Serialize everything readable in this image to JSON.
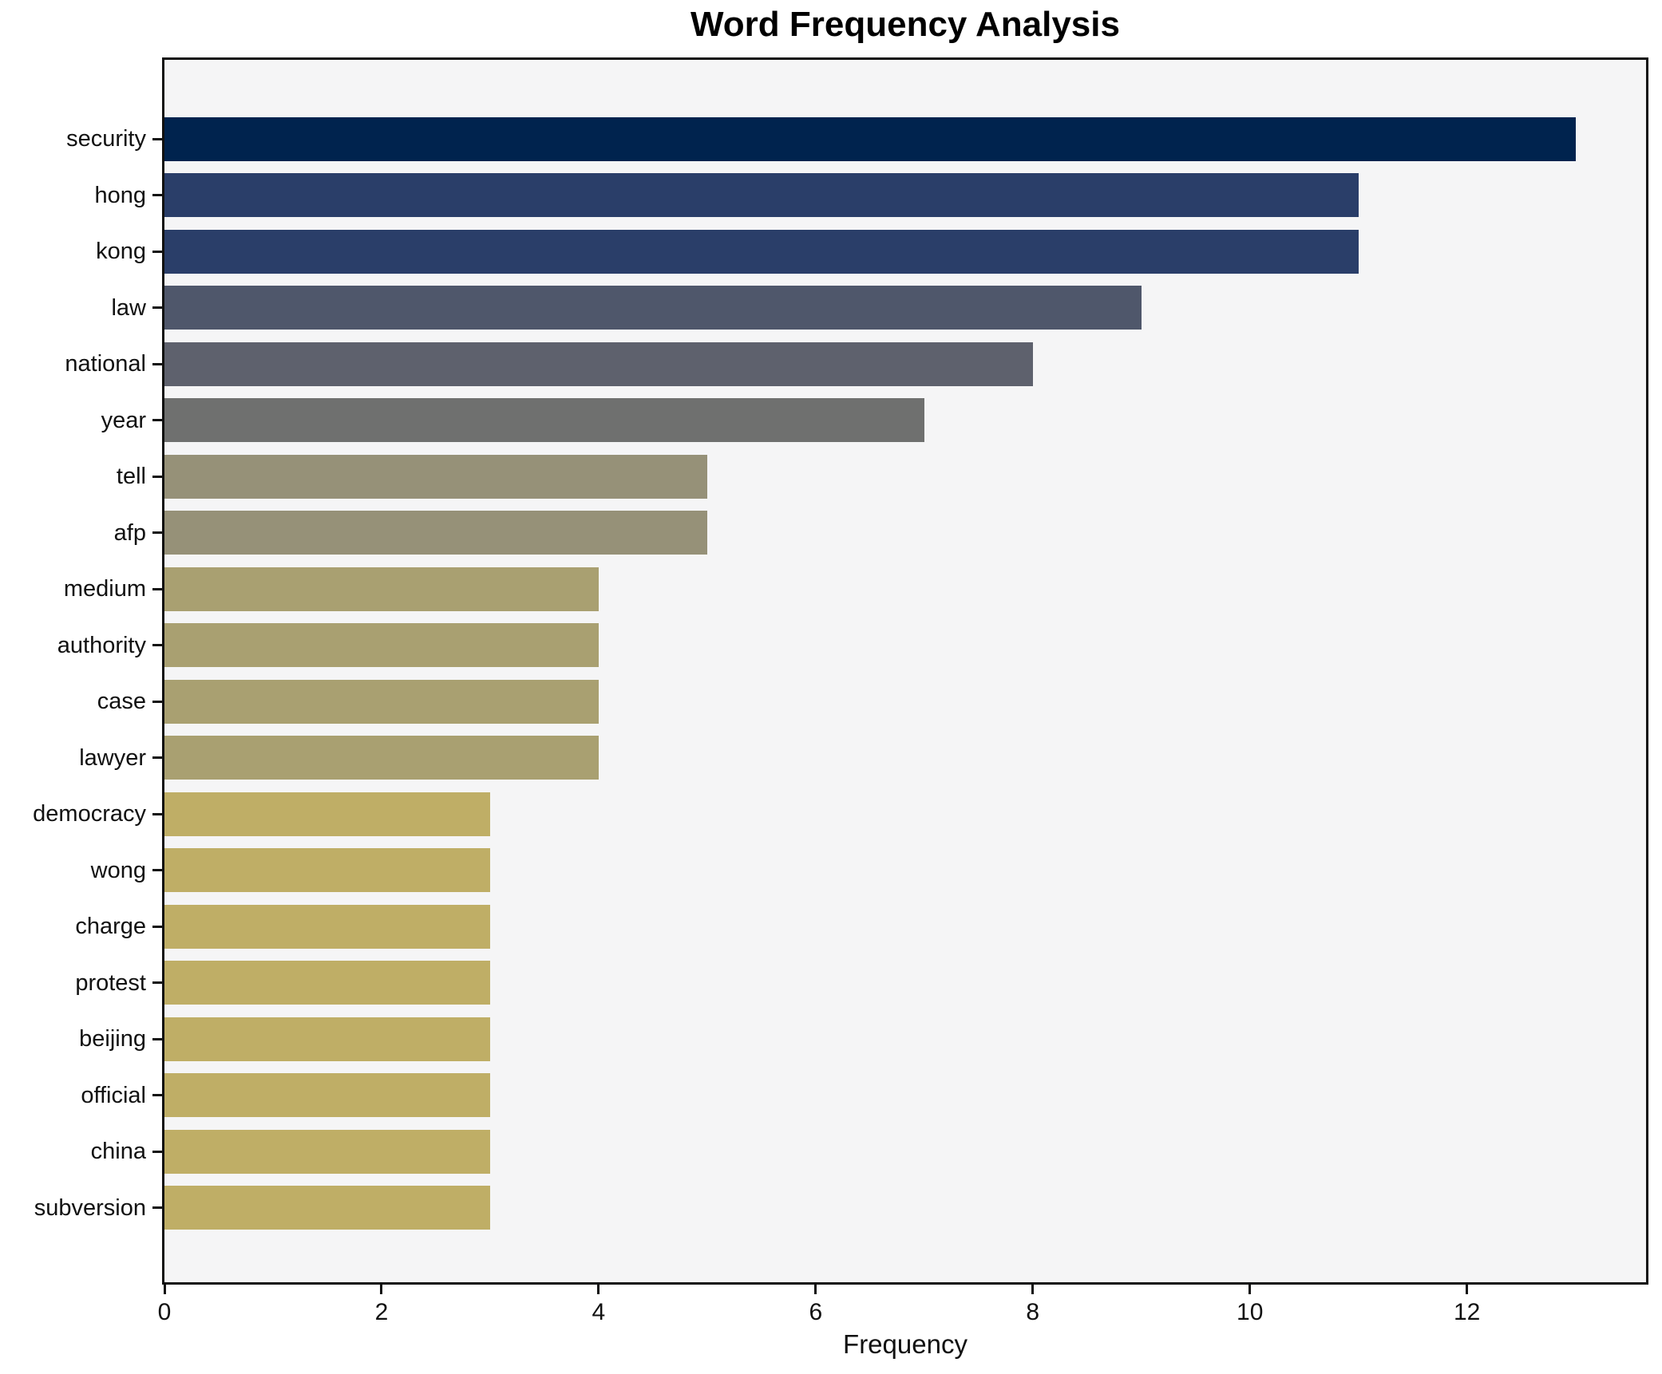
{
  "chart": {
    "title": "Word Frequency Analysis",
    "xlabel": "Frequency"
  },
  "chart_data": {
    "type": "bar",
    "orientation": "horizontal",
    "title": "Word Frequency Analysis",
    "xlabel": "Frequency",
    "ylabel": "",
    "categories": [
      "security",
      "hong",
      "kong",
      "law",
      "national",
      "year",
      "tell",
      "afp",
      "medium",
      "authority",
      "case",
      "lawyer",
      "democracy",
      "wong",
      "charge",
      "protest",
      "beijing",
      "official",
      "china",
      "subversion"
    ],
    "values": [
      13,
      11,
      11,
      9,
      8,
      7,
      5,
      5,
      4,
      4,
      4,
      4,
      3,
      3,
      3,
      3,
      3,
      3,
      3,
      3
    ],
    "bar_colors": [
      "#00234e",
      "#2a3e69",
      "#2a3e69",
      "#4f576b",
      "#5e616d",
      "#6f706f",
      "#969178",
      "#969178",
      "#a9a071",
      "#a9a071",
      "#a9a071",
      "#a9a071",
      "#bfae66",
      "#bfae66",
      "#bfae66",
      "#bfae66",
      "#bfae66",
      "#bfae66",
      "#bfae66",
      "#bfae66"
    ],
    "xlim": [
      0,
      13.65
    ],
    "xticks": [
      0,
      2,
      4,
      6,
      8,
      10,
      12
    ],
    "grid": false,
    "legend": null,
    "plot_background": "#f5f5f6",
    "figure_background": "#ffffff",
    "spine_color": "#111111"
  }
}
